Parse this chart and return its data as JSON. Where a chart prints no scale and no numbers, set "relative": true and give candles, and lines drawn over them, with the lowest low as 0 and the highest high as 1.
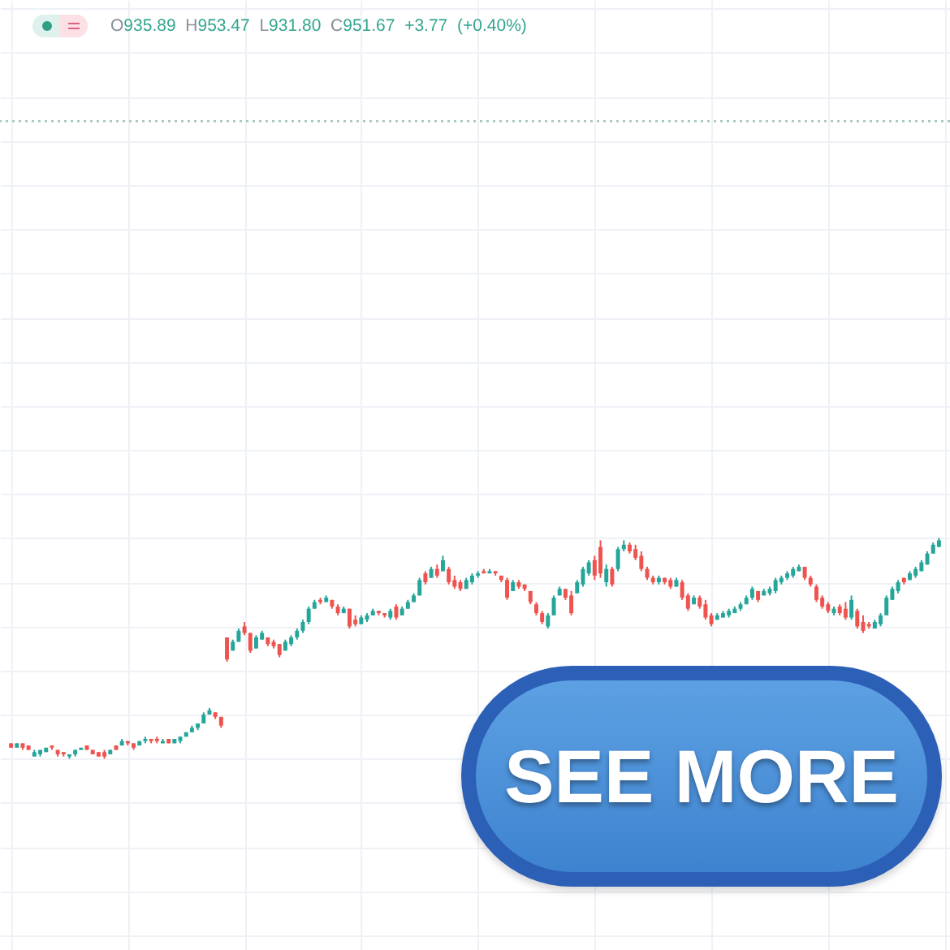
{
  "chart_data": {
    "type": "candlestick",
    "relative": true,
    "grid": true,
    "annotations": [
      "O935.89 H953.47 L931.80 C951.67 +3.77 (+0.40%)",
      "SEE MORE"
    ],
    "ref_lines": [
      {
        "axis": "y",
        "value": 2.89,
        "line_style": "dotted",
        "color": "#a3c4bc"
      }
    ],
    "categories": [
      null,
      null,
      null,
      null,
      null,
      null,
      null,
      null,
      null,
      null,
      null,
      null,
      null,
      null,
      null,
      null,
      null,
      null,
      null,
      null,
      null,
      null,
      null,
      null,
      null,
      null,
      null,
      null,
      null,
      null,
      null,
      null,
      null,
      null,
      null,
      null,
      null,
      null,
      null,
      null,
      null,
      null,
      null,
      null,
      null,
      null,
      null,
      null,
      null,
      null,
      null,
      null,
      null,
      null,
      null,
      null,
      null,
      null,
      null,
      null,
      null,
      null,
      null,
      null,
      null,
      null,
      null,
      null,
      null,
      null,
      null,
      null,
      null,
      null,
      null,
      null,
      null,
      null,
      null,
      null,
      null,
      null,
      null,
      null,
      null,
      null,
      null,
      null,
      null,
      null,
      null,
      null,
      null,
      null,
      null,
      null,
      null,
      null,
      null,
      null,
      null,
      null,
      null,
      null,
      null,
      null,
      null,
      null,
      null,
      null,
      null,
      null,
      null,
      null,
      null,
      null,
      null,
      null,
      null,
      null,
      null,
      null,
      null,
      null,
      null,
      null,
      null,
      null,
      null,
      null,
      null,
      null,
      null,
      null,
      null,
      null,
      null,
      null,
      null,
      null,
      null,
      null,
      null,
      null,
      null,
      null,
      null,
      null,
      null,
      null,
      null,
      null,
      null,
      null,
      null,
      null,
      null,
      null,
      null,
      null
    ],
    "ohlc": [
      [
        0.07,
        0.07,
        0.05,
        0.05
      ],
      [
        0.05,
        0.07,
        0.05,
        0.07
      ],
      [
        0.07,
        0.07,
        0.04,
        0.05
      ],
      [
        0.06,
        0.06,
        0.04,
        0.04
      ],
      [
        0.01,
        0.04,
        0.01,
        0.03
      ],
      [
        0.02,
        0.04,
        0.01,
        0.04
      ],
      [
        0.03,
        0.05,
        0.03,
        0.05
      ],
      [
        0.06,
        0.06,
        0.04,
        0.05
      ],
      [
        0.04,
        0.04,
        0.01,
        0.02
      ],
      [
        0.03,
        0.03,
        0.01,
        0.02
      ],
      [
        0.01,
        0.02,
        0.0,
        0.02
      ],
      [
        0.02,
        0.04,
        0.01,
        0.04
      ],
      [
        0.04,
        0.05,
        0.04,
        0.05
      ],
      [
        0.06,
        0.06,
        0.04,
        0.04
      ],
      [
        0.04,
        0.04,
        0.02,
        0.02
      ],
      [
        0.03,
        0.03,
        0.01,
        0.01
      ],
      [
        0.03,
        0.04,
        0.0,
        0.01
      ],
      [
        0.02,
        0.04,
        0.02,
        0.04
      ],
      [
        0.06,
        0.06,
        0.04,
        0.04
      ],
      [
        0.06,
        0.09,
        0.06,
        0.08
      ],
      [
        0.08,
        0.08,
        0.06,
        0.07
      ],
      [
        0.07,
        0.07,
        0.04,
        0.05
      ],
      [
        0.06,
        0.08,
        0.06,
        0.08
      ],
      [
        0.08,
        0.1,
        0.07,
        0.09
      ],
      [
        0.09,
        0.09,
        0.07,
        0.08
      ],
      [
        0.09,
        0.1,
        0.07,
        0.08
      ],
      [
        0.07,
        0.09,
        0.07,
        0.08
      ],
      [
        0.09,
        0.09,
        0.07,
        0.07
      ],
      [
        0.07,
        0.09,
        0.07,
        0.09
      ],
      [
        0.08,
        0.1,
        0.07,
        0.1
      ],
      [
        0.1,
        0.12,
        0.1,
        0.12
      ],
      [
        0.12,
        0.15,
        0.12,
        0.14
      ],
      [
        0.14,
        0.16,
        0.13,
        0.16
      ],
      [
        0.16,
        0.21,
        0.16,
        0.2
      ],
      [
        0.2,
        0.23,
        0.2,
        0.22
      ],
      [
        0.21,
        0.21,
        0.18,
        0.19
      ],
      [
        0.19,
        0.19,
        0.14,
        0.15
      ],
      [
        0.55,
        0.55,
        0.44,
        0.45
      ],
      [
        0.49,
        0.54,
        0.49,
        0.53
      ],
      [
        0.53,
        0.59,
        0.53,
        0.58
      ],
      [
        0.6,
        0.62,
        0.56,
        0.57
      ],
      [
        0.57,
        0.57,
        0.48,
        0.49
      ],
      [
        0.5,
        0.56,
        0.5,
        0.55
      ],
      [
        0.54,
        0.58,
        0.54,
        0.57
      ],
      [
        0.55,
        0.55,
        0.51,
        0.52
      ],
      [
        0.53,
        0.54,
        0.5,
        0.51
      ],
      [
        0.52,
        0.52,
        0.46,
        0.47
      ],
      [
        0.49,
        0.54,
        0.49,
        0.53
      ],
      [
        0.52,
        0.56,
        0.51,
        0.55
      ],
      [
        0.55,
        0.59,
        0.54,
        0.58
      ],
      [
        0.58,
        0.63,
        0.57,
        0.62
      ],
      [
        0.62,
        0.69,
        0.61,
        0.68
      ],
      [
        0.68,
        0.72,
        0.68,
        0.71
      ],
      [
        0.72,
        0.73,
        0.7,
        0.71
      ],
      [
        0.71,
        0.74,
        0.71,
        0.73
      ],
      [
        0.72,
        0.72,
        0.68,
        0.69
      ],
      [
        0.69,
        0.7,
        0.65,
        0.66
      ],
      [
        0.66,
        0.69,
        0.66,
        0.68
      ],
      [
        0.68,
        0.68,
        0.59,
        0.6
      ],
      [
        0.63,
        0.65,
        0.6,
        0.61
      ],
      [
        0.61,
        0.65,
        0.61,
        0.64
      ],
      [
        0.63,
        0.66,
        0.62,
        0.65
      ],
      [
        0.65,
        0.68,
        0.65,
        0.67
      ],
      [
        0.67,
        0.67,
        0.65,
        0.66
      ],
      [
        0.66,
        0.66,
        0.64,
        0.65
      ],
      [
        0.64,
        0.68,
        0.63,
        0.67
      ],
      [
        0.69,
        0.7,
        0.63,
        0.64
      ],
      [
        0.65,
        0.69,
        0.65,
        0.68
      ],
      [
        0.68,
        0.72,
        0.68,
        0.71
      ],
      [
        0.71,
        0.75,
        0.71,
        0.74
      ],
      [
        0.74,
        0.82,
        0.74,
        0.81
      ],
      [
        0.84,
        0.85,
        0.79,
        0.8
      ],
      [
        0.82,
        0.87,
        0.82,
        0.86
      ],
      [
        0.86,
        0.88,
        0.82,
        0.83
      ],
      [
        0.85,
        0.92,
        0.85,
        0.9
      ],
      [
        0.86,
        0.87,
        0.79,
        0.8
      ],
      [
        0.81,
        0.83,
        0.77,
        0.78
      ],
      [
        0.8,
        0.81,
        0.76,
        0.77
      ],
      [
        0.77,
        0.82,
        0.77,
        0.81
      ],
      [
        0.8,
        0.84,
        0.79,
        0.83
      ],
      [
        0.83,
        0.85,
        0.82,
        0.84
      ],
      [
        0.85,
        0.86,
        0.84,
        0.84
      ],
      [
        0.84,
        0.86,
        0.84,
        0.85
      ],
      [
        0.85,
        0.85,
        0.83,
        0.84
      ],
      [
        0.83,
        0.83,
        0.8,
        0.81
      ],
      [
        0.81,
        0.82,
        0.72,
        0.73
      ],
      [
        0.76,
        0.81,
        0.76,
        0.8
      ],
      [
        0.8,
        0.81,
        0.77,
        0.78
      ],
      [
        0.79,
        0.79,
        0.76,
        0.77
      ],
      [
        0.76,
        0.76,
        0.7,
        0.71
      ],
      [
        0.7,
        0.71,
        0.65,
        0.66
      ],
      [
        0.66,
        0.67,
        0.61,
        0.62
      ],
      [
        0.6,
        0.66,
        0.59,
        0.65
      ],
      [
        0.65,
        0.74,
        0.65,
        0.73
      ],
      [
        0.74,
        0.78,
        0.74,
        0.77
      ],
      [
        0.77,
        0.77,
        0.72,
        0.73
      ],
      [
        0.74,
        0.76,
        0.65,
        0.66
      ],
      [
        0.75,
        0.81,
        0.75,
        0.8
      ],
      [
        0.79,
        0.87,
        0.78,
        0.86
      ],
      [
        0.84,
        0.9,
        0.83,
        0.89
      ],
      [
        0.9,
        0.92,
        0.81,
        0.83
      ],
      [
        0.96,
        0.99,
        0.82,
        0.84
      ],
      [
        0.8,
        0.88,
        0.78,
        0.86
      ],
      [
        0.86,
        0.87,
        0.78,
        0.79
      ],
      [
        0.86,
        0.96,
        0.85,
        0.95
      ],
      [
        0.95,
        0.99,
        0.94,
        0.97
      ],
      [
        0.97,
        0.98,
        0.93,
        0.94
      ],
      [
        0.95,
        0.97,
        0.9,
        0.91
      ],
      [
        0.92,
        0.94,
        0.85,
        0.86
      ],
      [
        0.86,
        0.87,
        0.81,
        0.82
      ],
      [
        0.82,
        0.83,
        0.79,
        0.8
      ],
      [
        0.8,
        0.83,
        0.79,
        0.82
      ],
      [
        0.82,
        0.82,
        0.79,
        0.8
      ],
      [
        0.81,
        0.82,
        0.77,
        0.78
      ],
      [
        0.78,
        0.82,
        0.78,
        0.81
      ],
      [
        0.8,
        0.81,
        0.72,
        0.73
      ],
      [
        0.74,
        0.75,
        0.67,
        0.68
      ],
      [
        0.7,
        0.74,
        0.7,
        0.73
      ],
      [
        0.73,
        0.74,
        0.68,
        0.69
      ],
      [
        0.7,
        0.72,
        0.63,
        0.64
      ],
      [
        0.65,
        0.66,
        0.6,
        0.61
      ],
      [
        0.63,
        0.66,
        0.63,
        0.65
      ],
      [
        0.64,
        0.67,
        0.64,
        0.66
      ],
      [
        0.65,
        0.68,
        0.64,
        0.67
      ],
      [
        0.66,
        0.69,
        0.66,
        0.68
      ],
      [
        0.68,
        0.71,
        0.67,
        0.7
      ],
      [
        0.7,
        0.74,
        0.7,
        0.73
      ],
      [
        0.73,
        0.78,
        0.72,
        0.77
      ],
      [
        0.76,
        0.76,
        0.71,
        0.72
      ],
      [
        0.74,
        0.77,
        0.74,
        0.76
      ],
      [
        0.75,
        0.78,
        0.74,
        0.77
      ],
      [
        0.76,
        0.82,
        0.75,
        0.81
      ],
      [
        0.8,
        0.83,
        0.79,
        0.82
      ],
      [
        0.82,
        0.85,
        0.81,
        0.84
      ],
      [
        0.83,
        0.87,
        0.82,
        0.86
      ],
      [
        0.85,
        0.88,
        0.85,
        0.87
      ],
      [
        0.87,
        0.87,
        0.81,
        0.82
      ],
      [
        0.82,
        0.83,
        0.78,
        0.79
      ],
      [
        0.78,
        0.79,
        0.71,
        0.72
      ],
      [
        0.73,
        0.74,
        0.68,
        0.69
      ],
      [
        0.7,
        0.71,
        0.66,
        0.67
      ],
      [
        0.66,
        0.69,
        0.65,
        0.68
      ],
      [
        0.69,
        0.7,
        0.65,
        0.66
      ],
      [
        0.68,
        0.71,
        0.63,
        0.64
      ],
      [
        0.64,
        0.74,
        0.63,
        0.72
      ],
      [
        0.67,
        0.68,
        0.59,
        0.6
      ],
      [
        0.62,
        0.65,
        0.57,
        0.58
      ],
      [
        0.61,
        0.62,
        0.59,
        0.6
      ],
      [
        0.59,
        0.63,
        0.59,
        0.62
      ],
      [
        0.61,
        0.66,
        0.6,
        0.65
      ],
      [
        0.65,
        0.74,
        0.65,
        0.73
      ],
      [
        0.72,
        0.78,
        0.72,
        0.77
      ],
      [
        0.76,
        0.81,
        0.75,
        0.8
      ],
      [
        0.82,
        0.82,
        0.79,
        0.8
      ],
      [
        0.81,
        0.85,
        0.81,
        0.84
      ],
      [
        0.83,
        0.87,
        0.82,
        0.86
      ],
      [
        0.85,
        0.9,
        0.85,
        0.89
      ],
      [
        0.88,
        0.94,
        0.88,
        0.93
      ],
      [
        0.93,
        0.98,
        0.93,
        0.97
      ],
      [
        0.96,
        1.0,
        0.96,
        0.99
      ]
    ],
    "colors": [
      "#ef5350",
      "#26a69a",
      "#ef5350",
      "#ef5350",
      "#26a69a",
      "#26a69a",
      "#26a69a",
      "#ef5350",
      "#ef5350",
      "#ef5350",
      "#26a69a",
      "#26a69a",
      "#26a69a",
      "#ef5350",
      "#ef5350",
      "#ef5350",
      "#ef5350",
      "#26a69a",
      "#ef5350",
      "#26a69a",
      "#ef5350",
      "#ef5350",
      "#26a69a",
      "#26a69a",
      "#ef5350",
      "#ef5350",
      "#26a69a",
      "#ef5350",
      "#26a69a",
      "#26a69a",
      "#26a69a",
      "#26a69a",
      "#26a69a",
      "#26a69a",
      "#26a69a",
      "#ef5350",
      "#ef5350",
      "#ef5350",
      "#26a69a",
      "#26a69a",
      "#ef5350",
      "#ef5350",
      "#26a69a",
      "#26a69a",
      "#ef5350",
      "#ef5350",
      "#ef5350",
      "#26a69a",
      "#26a69a",
      "#26a69a",
      "#26a69a",
      "#26a69a",
      "#26a69a",
      "#ef5350",
      "#26a69a",
      "#ef5350",
      "#ef5350",
      "#26a69a",
      "#ef5350",
      "#ef5350",
      "#26a69a",
      "#26a69a",
      "#26a69a",
      "#ef5350",
      "#ef5350",
      "#26a69a",
      "#ef5350",
      "#26a69a",
      "#26a69a",
      "#26a69a",
      "#26a69a",
      "#ef5350",
      "#26a69a",
      "#ef5350",
      "#26a69a",
      "#ef5350",
      "#ef5350",
      "#ef5350",
      "#26a69a",
      "#26a69a",
      "#26a69a",
      "#ef5350",
      "#26a69a",
      "#ef5350",
      "#ef5350",
      "#ef5350",
      "#26a69a",
      "#ef5350",
      "#ef5350",
      "#ef5350",
      "#ef5350",
      "#ef5350",
      "#26a69a",
      "#26a69a",
      "#26a69a",
      "#ef5350",
      "#ef5350",
      "#26a69a",
      "#26a69a",
      "#26a69a",
      "#ef5350",
      "#ef5350",
      "#26a69a",
      "#ef5350",
      "#26a69a",
      "#26a69a",
      "#ef5350",
      "#ef5350",
      "#ef5350",
      "#ef5350",
      "#ef5350",
      "#26a69a",
      "#ef5350",
      "#ef5350",
      "#26a69a",
      "#ef5350",
      "#ef5350",
      "#26a69a",
      "#ef5350",
      "#ef5350",
      "#ef5350",
      "#26a69a",
      "#26a69a",
      "#26a69a",
      "#26a69a",
      "#26a69a",
      "#26a69a",
      "#26a69a",
      "#ef5350",
      "#26a69a",
      "#26a69a",
      "#26a69a",
      "#26a69a",
      "#26a69a",
      "#26a69a",
      "#26a69a",
      "#ef5350",
      "#ef5350",
      "#ef5350",
      "#ef5350",
      "#ef5350",
      "#26a69a",
      "#ef5350",
      "#ef5350",
      "#26a69a",
      "#ef5350",
      "#ef5350",
      "#ef5350",
      "#26a69a",
      "#26a69a",
      "#26a69a",
      "#26a69a",
      "#26a69a",
      "#ef5350",
      "#26a69a",
      "#26a69a",
      "#26a69a",
      "#26a69a",
      "#26a69a",
      "#26a69a"
    ]
  }
}
